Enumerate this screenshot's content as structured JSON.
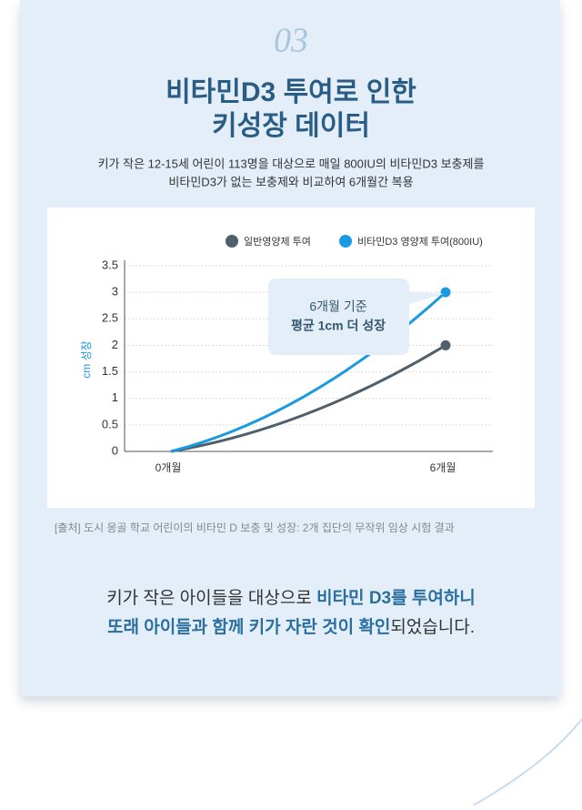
{
  "header": {
    "number": "03",
    "title": [
      "비타민D3 투여로 인한",
      "키성장 데이터"
    ],
    "description": [
      "키가 작은 12-15세 어린이 113명을 대상으로 매일 800IU의 비타민D3 보충제를",
      "비타민D3가 없는 보충제와 비교하여 6개월간 복용"
    ]
  },
  "chart_data": {
    "type": "line",
    "categories": [
      "0개월",
      "6개월"
    ],
    "series": [
      {
        "name": "일반영양제 투여",
        "color": "#4f5f6b",
        "values": [
          0,
          2
        ]
      },
      {
        "name": "비타민D3 영양제 투여(800IU)",
        "color": "#1a9ae0",
        "values": [
          0,
          3
        ]
      }
    ],
    "y_label": "cm 성장",
    "ylim": [
      0,
      3.5
    ],
    "yticks": [
      0,
      0.5,
      1,
      1.5,
      2,
      2.5,
      3,
      3.5
    ],
    "grid": true,
    "annotation": [
      "6개월 기준",
      "평균 1cm 더 성장"
    ]
  },
  "source": "[출처] 도시 몽골 학교 어린이의 비타민 D 보충 및 성장: 2개 집단의 무작위 임상 시험 결과",
  "conclusion": [
    [
      "키가 작은 아이들을 대상으로 ",
      "비타민 D3를 투여하니"
    ],
    [
      "또래 아이들과 함께 키가 자란 것이 확인",
      "되었습니다."
    ]
  ]
}
